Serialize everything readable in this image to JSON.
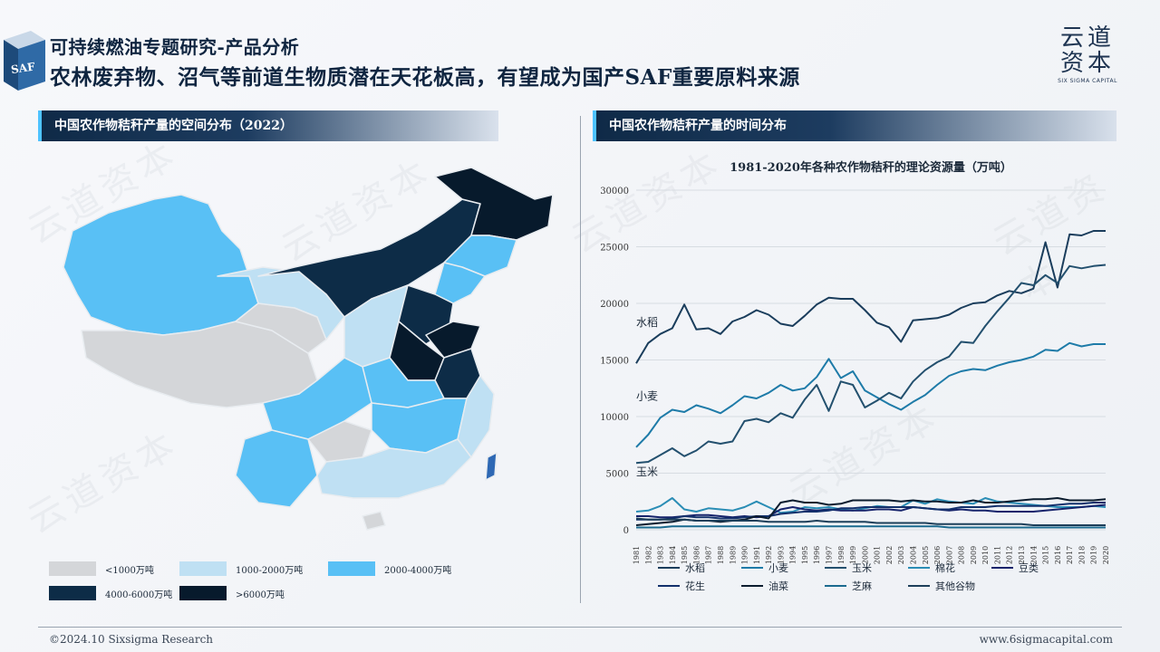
{
  "header": {
    "title_line1": "可持续燃油专题研究-产品分析",
    "title_line2": "农林废弃物、沼气等前道生物质潜在天花板高，有望成为国产SAF重要原料来源",
    "logo_badge": "SAF"
  },
  "brand": {
    "line1": "云道",
    "line2": "资本",
    "line3": "SIX SIGMA CAPITAL"
  },
  "left_section": {
    "title": "中国农作物秸秆产量的空间分布（2022）",
    "legend": [
      {
        "label": "<1000万吨",
        "color": "#d4d6d9"
      },
      {
        "label": "1000-2000万吨",
        "color": "#bfe0f3"
      },
      {
        "label": "2000-4000万吨",
        "color": "#59c0f5"
      },
      {
        "label": "4000-6000万吨",
        "color": "#0d2c47"
      },
      {
        "label": ">6000万吨",
        "color": "#071a2c"
      }
    ]
  },
  "right_section": {
    "title": "中国农作物秸秆产量的时间分布"
  },
  "footer": {
    "left": "©2024.10 Sixsigma Research",
    "right": "www.6sigmacapital.com"
  },
  "watermark_text": "云道资本",
  "chart_data": {
    "type": "line",
    "title": "1981-2020年各种农作物秸秆的理论资源量（万吨）",
    "x": [
      1981,
      1982,
      1983,
      1984,
      1985,
      1986,
      1987,
      1988,
      1989,
      1990,
      1991,
      1992,
      1993,
      1994,
      1995,
      1996,
      1997,
      1998,
      1999,
      2000,
      2001,
      2002,
      2003,
      2004,
      2005,
      2006,
      2007,
      2008,
      2009,
      2010,
      2011,
      2012,
      2013,
      2014,
      2015,
      2016,
      2017,
      2018,
      2019,
      2020
    ],
    "ylim": [
      0,
      30000
    ],
    "yticks": [
      0,
      5000,
      10000,
      15000,
      20000,
      25000,
      30000
    ],
    "annotations": [
      {
        "text": "水稻",
        "x": 1981,
        "y": 18000
      },
      {
        "text": "小麦",
        "x": 1981,
        "y": 11500
      },
      {
        "text": "玉米",
        "x": 1981,
        "y": 4800
      }
    ],
    "legend_position": "bottom",
    "series": [
      {
        "name": "水稻",
        "color": "#1a3d5c",
        "values": [
          14700,
          16500,
          17300,
          17800,
          19900,
          17700,
          17800,
          17300,
          18400,
          18800,
          19400,
          19000,
          18200,
          18000,
          18900,
          19900,
          20500,
          20400,
          20400,
          19400,
          18300,
          17900,
          16600,
          18500,
          18600,
          18700,
          19000,
          19600,
          20000,
          20100,
          20700,
          21100,
          20900,
          21300,
          25400,
          21400,
          26100,
          26000,
          26400,
          26400
        ]
      },
      {
        "name": "小麦",
        "color": "#1e7ba8",
        "values": [
          7300,
          8400,
          9900,
          10600,
          10400,
          11000,
          10700,
          10300,
          11000,
          11800,
          11600,
          12100,
          12800,
          12300,
          12500,
          13500,
          15100,
          13400,
          14000,
          12300,
          11700,
          11100,
          10600,
          11300,
          11900,
          12800,
          13600,
          14000,
          14200,
          14100,
          14500,
          14800,
          15000,
          15300,
          15900,
          15800,
          16500,
          16200,
          16400,
          16400
        ]
      },
      {
        "name": "玉米",
        "color": "#23506e",
        "values": [
          5900,
          6000,
          6600,
          7200,
          6500,
          7000,
          7800,
          7600,
          7800,
          9600,
          9800,
          9500,
          10300,
          9900,
          11500,
          12800,
          10500,
          13100,
          12800,
          10800,
          11400,
          12100,
          11600,
          13100,
          14100,
          14800,
          15300,
          16600,
          16500,
          18000,
          19300,
          20500,
          21800,
          21600,
          22500,
          21800,
          23300,
          23100,
          23300,
          23400
        ]
      },
      {
        "name": "棉花",
        "color": "#2a8db5",
        "values": [
          1600,
          1700,
          2100,
          2800,
          1800,
          1600,
          1900,
          1800,
          1700,
          2000,
          2500,
          2000,
          1500,
          1600,
          2000,
          1900,
          2000,
          1800,
          1700,
          1900,
          2100,
          2000,
          2000,
          2600,
          2300,
          2700,
          2500,
          2400,
          2300,
          2800,
          2500,
          2400,
          2300,
          2200,
          2100,
          2000,
          2000,
          2000,
          2100,
          2000
        ]
      },
      {
        "name": "豆类",
        "color": "#16236b",
        "values": [
          1200,
          1200,
          1100,
          1100,
          1200,
          1300,
          1300,
          1200,
          1100,
          1200,
          1100,
          1200,
          1800,
          2000,
          1800,
          1700,
          1800,
          1700,
          1700,
          1700,
          1800,
          1800,
          1700,
          2000,
          1900,
          1800,
          1700,
          1800,
          1700,
          1700,
          1600,
          1600,
          1600,
          1600,
          1700,
          1800,
          1900,
          2000,
          2100,
          2200
        ]
      },
      {
        "name": "花生",
        "color": "#12306b",
        "values": [
          900,
          900,
          900,
          1000,
          1200,
          1100,
          1100,
          1000,
          1000,
          1100,
          1200,
          1200,
          1400,
          1500,
          1600,
          1600,
          1700,
          1900,
          1900,
          2000,
          2000,
          2000,
          2000,
          2000,
          1900,
          1800,
          1800,
          2000,
          2000,
          2000,
          2100,
          2100,
          2100,
          2100,
          2100,
          2200,
          2300,
          2300,
          2400,
          2400
        ]
      },
      {
        "name": "油菜",
        "color": "#0b1c2e",
        "values": [
          400,
          500,
          600,
          700,
          900,
          800,
          800,
          700,
          800,
          900,
          1200,
          1000,
          2400,
          2600,
          2400,
          2400,
          2200,
          2300,
          2600,
          2600,
          2600,
          2600,
          2500,
          2600,
          2500,
          2500,
          2400,
          2400,
          2600,
          2400,
          2400,
          2500,
          2600,
          2700,
          2700,
          2800,
          2600,
          2600,
          2600,
          2700
        ]
      },
      {
        "name": "芝麻",
        "color": "#1a6a8f",
        "values": [
          200,
          200,
          200,
          300,
          300,
          300,
          300,
          300,
          300,
          300,
          300,
          300,
          300,
          300,
          300,
          300,
          300,
          300,
          300,
          300,
          300,
          300,
          300,
          300,
          300,
          300,
          200,
          200,
          200,
          200,
          200,
          200,
          200,
          200,
          200,
          200,
          200,
          200,
          200,
          200
        ]
      },
      {
        "name": "其他谷物",
        "color": "#1d3f5a",
        "values": [
          1000,
          900,
          900,
          900,
          900,
          800,
          800,
          800,
          800,
          800,
          800,
          700,
          700,
          700,
          700,
          800,
          700,
          700,
          700,
          700,
          600,
          600,
          600,
          600,
          600,
          500,
          500,
          500,
          500,
          500,
          500,
          500,
          500,
          400,
          400,
          400,
          400,
          400,
          400,
          400
        ]
      }
    ]
  }
}
